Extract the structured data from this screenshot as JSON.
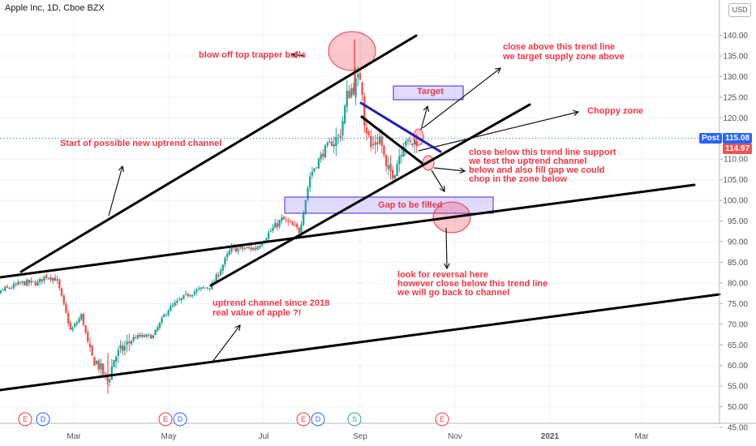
{
  "header": {
    "title": "Apple Inc, 1D, Cboe BZX",
    "currency": "USD"
  },
  "chart_data": {
    "type": "candlestick",
    "symbol": "Apple Inc",
    "interval": "1D",
    "exchange": "Cboe BZX",
    "ylim": [
      45,
      145
    ],
    "y_ticks": [
      45,
      50,
      55,
      60,
      65,
      70,
      75,
      80,
      85,
      90,
      95,
      100,
      105,
      110,
      115,
      120,
      125,
      130,
      135,
      140
    ],
    "x_labels": [
      "Mar",
      "May",
      "Jul",
      "Sep",
      "Nov",
      "2021",
      "Mar"
    ],
    "post_label": "Post",
    "post_price": "115.08",
    "last_price": "114.97",
    "colors": {
      "up": "#26a69a",
      "down": "#ef5350",
      "annotation": "#f23645",
      "channel": "#000000",
      "trend_blue": "#1f1fb4",
      "zone": "#3a2ad6"
    },
    "price_path": [
      [
        "2019-12-31",
        73.4
      ],
      [
        "2020-01-15",
        78.2
      ],
      [
        "2020-01-28",
        80.0
      ],
      [
        "2020-02-07",
        80.0
      ],
      [
        "2020-02-12",
        81.8
      ],
      [
        "2020-02-19",
        80.9
      ],
      [
        "2020-02-28",
        68.3
      ],
      [
        "2020-03-06",
        72.2
      ],
      [
        "2020-03-12",
        62.0
      ],
      [
        "2020-03-16",
        60.6
      ],
      [
        "2020-03-23",
        56.1
      ],
      [
        "2020-03-27",
        61.9
      ],
      [
        "2020-04-09",
        66.9
      ],
      [
        "2020-04-21",
        67.1
      ],
      [
        "2020-04-30",
        73.4
      ],
      [
        "2020-05-14",
        77.4
      ],
      [
        "2020-05-29",
        79.5
      ],
      [
        "2020-06-10",
        88.2
      ],
      [
        "2020-06-26",
        88.4
      ],
      [
        "2020-07-07",
        93.2
      ],
      [
        "2020-07-13",
        95.5
      ],
      [
        "2020-07-24",
        92.6
      ],
      [
        "2020-07-31",
        106.3
      ],
      [
        "2020-08-10",
        112.7
      ],
      [
        "2020-08-19",
        115.7
      ],
      [
        "2020-08-24",
        125.9
      ],
      [
        "2020-08-31",
        129.0
      ],
      [
        "2020-09-02",
        131.4
      ],
      [
        "2020-09-03",
        120.9
      ],
      [
        "2020-09-08",
        112.8
      ],
      [
        "2020-09-14",
        115.4
      ],
      [
        "2020-09-18",
        106.8
      ],
      [
        "2020-09-23",
        107.1
      ],
      [
        "2020-09-30",
        115.8
      ],
      [
        "2020-10-02",
        113.0
      ],
      [
        "2020-10-08",
        114.97
      ]
    ],
    "annotations": [
      {
        "key": "blowoff",
        "text": "blow off top trapper bulls"
      },
      {
        "key": "close_above",
        "lines": [
          "close above this trend line",
          "we target supply zone above"
        ]
      },
      {
        "key": "target",
        "text": "Target"
      },
      {
        "key": "choppy",
        "text": "Choppy zone"
      },
      {
        "key": "new_channel",
        "text": "Start of possible new uptrend channel"
      },
      {
        "key": "close_below",
        "lines": [
          "close below this trend line support",
          "we test the uptrend channel",
          "below and also fill gap we could",
          "chop in the zone below"
        ]
      },
      {
        "key": "gap",
        "text": "Gap to be filled"
      },
      {
        "key": "reversal",
        "lines": [
          "look for reversal here",
          "however close below this trend line",
          "we will go back to channel"
        ]
      },
      {
        "key": "since2018",
        "lines": [
          "uptrend channel since 2018",
          "real value of apple ?!"
        ]
      }
    ],
    "events": [
      "E",
      "D",
      "E",
      "D",
      "E",
      "D",
      "S",
      "E"
    ]
  }
}
